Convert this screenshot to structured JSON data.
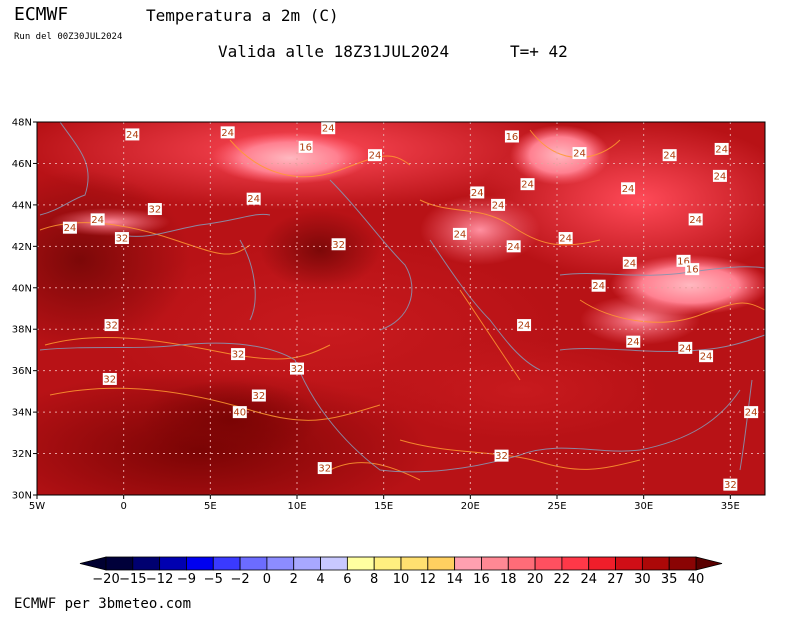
{
  "header": {
    "model": "ECMWF",
    "title": "Temperatura a 2m (C)",
    "run": "Run del 00Z30JUL2024",
    "valid": "Valida alle 18Z31JUL2024",
    "step": "T=+ 42"
  },
  "footer": {
    "credit": "ECMWF per 3bmeteo.com"
  },
  "map": {
    "lat_range": [
      30,
      48
    ],
    "lon_range": [
      -5,
      37
    ],
    "lat_ticks": [
      "30N",
      "32N",
      "34N",
      "36N",
      "38N",
      "40N",
      "42N",
      "44N",
      "46N",
      "48N"
    ],
    "lon_ticks": [
      "5W",
      "0",
      "5E",
      "10E",
      "15E",
      "20E",
      "25E",
      "30E",
      "35E"
    ],
    "grid": true,
    "labels": [
      {
        "t": "24",
        "lon": 0.5,
        "lat": 47.4
      },
      {
        "t": "24",
        "lon": 6.0,
        "lat": 47.5
      },
      {
        "t": "24",
        "lon": 11.8,
        "lat": 47.7
      },
      {
        "t": "16",
        "lon": 10.5,
        "lat": 46.8
      },
      {
        "t": "24",
        "lon": 14.5,
        "lat": 46.4
      },
      {
        "t": "16",
        "lon": 22.4,
        "lat": 47.3
      },
      {
        "t": "24",
        "lon": 26.3,
        "lat": 46.5
      },
      {
        "t": "24",
        "lon": 31.5,
        "lat": 46.4
      },
      {
        "t": "24",
        "lon": 34.5,
        "lat": 46.7
      },
      {
        "t": "24",
        "lon": 34.4,
        "lat": 45.4
      },
      {
        "t": "24",
        "lon": 29.1,
        "lat": 44.8
      },
      {
        "t": "24",
        "lon": 23.3,
        "lat": 45.0
      },
      {
        "t": "24",
        "lon": 20.4,
        "lat": 44.6
      },
      {
        "t": "24",
        "lon": 21.6,
        "lat": 44.0
      },
      {
        "t": "24",
        "lon": 7.5,
        "lat": 44.3
      },
      {
        "t": "24",
        "lon": -1.5,
        "lat": 43.3
      },
      {
        "t": "24",
        "lon": -3.1,
        "lat": 42.9
      },
      {
        "t": "32",
        "lon": 1.8,
        "lat": 43.8
      },
      {
        "t": "32",
        "lon": -0.1,
        "lat": 42.4
      },
      {
        "t": "32",
        "lon": 12.4,
        "lat": 42.1
      },
      {
        "t": "24",
        "lon": 19.4,
        "lat": 42.6
      },
      {
        "t": "24",
        "lon": 22.5,
        "lat": 42.0
      },
      {
        "t": "24",
        "lon": 25.5,
        "lat": 42.4
      },
      {
        "t": "24",
        "lon": 33.0,
        "lat": 43.3
      },
      {
        "t": "24",
        "lon": 29.2,
        "lat": 41.2
      },
      {
        "t": "16",
        "lon": 32.3,
        "lat": 41.3
      },
      {
        "t": "16",
        "lon": 32.8,
        "lat": 40.9
      },
      {
        "t": "24",
        "lon": 27.4,
        "lat": 40.1
      },
      {
        "t": "32",
        "lon": -0.7,
        "lat": 38.2
      },
      {
        "t": "24",
        "lon": 23.1,
        "lat": 38.2
      },
      {
        "t": "24",
        "lon": 29.4,
        "lat": 37.4
      },
      {
        "t": "24",
        "lon": 32.4,
        "lat": 37.1
      },
      {
        "t": "24",
        "lon": 33.6,
        "lat": 36.7
      },
      {
        "t": "32",
        "lon": 6.6,
        "lat": 36.8
      },
      {
        "t": "32",
        "lon": 10.0,
        "lat": 36.1
      },
      {
        "t": "32",
        "lon": -0.8,
        "lat": 35.6
      },
      {
        "t": "32",
        "lon": 7.8,
        "lat": 34.8
      },
      {
        "t": "40",
        "lon": 6.7,
        "lat": 34.0
      },
      {
        "t": "24",
        "lon": 36.2,
        "lat": 34.0
      },
      {
        "t": "32",
        "lon": 21.8,
        "lat": 31.9
      },
      {
        "t": "32",
        "lon": 11.6,
        "lat": 31.3
      },
      {
        "t": "32",
        "lon": 35.0,
        "lat": 30.5
      }
    ]
  },
  "colorbar": {
    "labels": [
      "−20",
      "−15",
      "−12",
      "−9",
      "−5",
      "−2",
      "0",
      "2",
      "4",
      "6",
      "8",
      "10",
      "12",
      "14",
      "16",
      "18",
      "20",
      "22",
      "24",
      "27",
      "30",
      "35",
      "40"
    ],
    "colors": [
      "#00003a",
      "#000070",
      "#0000b0",
      "#0000f0",
      "#3a3aff",
      "#6c6cff",
      "#8c8cff",
      "#a8a8ff",
      "#c8c8ff",
      "#ffffa0",
      "#ffef80",
      "#ffe070",
      "#ffd060",
      "#ffa0b0",
      "#ff8894",
      "#ff6c78",
      "#ff5060",
      "#ff3848",
      "#f01e2a",
      "#d00e16",
      "#ac0808",
      "#8a0404"
    ],
    "arrow_left": "#000030",
    "arrow_right": "#5a0000"
  }
}
